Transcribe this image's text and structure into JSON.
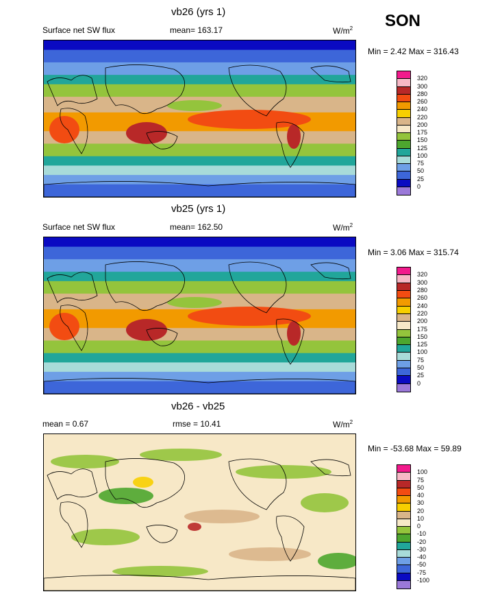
{
  "season": "SON",
  "panels": [
    {
      "title": "vb26 (yrs 1)",
      "left_label": "Surface net SW flux",
      "mean_label": "mean= 163.17",
      "units": "W/m",
      "units_sup": "2",
      "minmax": "Min =   2.42 Max = 316.43",
      "field": "absolute",
      "levels": [
        "320",
        "300",
        "280",
        "260",
        "240",
        "220",
        "200",
        "175",
        "150",
        "125",
        "100",
        "75",
        "50",
        "25",
        "0"
      ],
      "colors": [
        "#f21a8c",
        "#f7b8c6",
        "#b82828",
        "#f24c12",
        "#f29a00",
        "#f7cf00",
        "#d9b589",
        "#f7e8c7",
        "#94c43c",
        "#4da62e",
        "#21a69a",
        "#a8dbd9",
        "#6e9fe6",
        "#3d66d9",
        "#0a0ac2",
        "#9b79d9"
      ]
    },
    {
      "title": "vb25 (yrs 1)",
      "left_label": "Surface net SW flux",
      "mean_label": "mean= 162.50",
      "units": "W/m",
      "units_sup": "2",
      "minmax": "Min =   3.06 Max = 315.74",
      "field": "absolute",
      "levels": [
        "320",
        "300",
        "280",
        "260",
        "240",
        "220",
        "200",
        "175",
        "150",
        "125",
        "100",
        "75",
        "50",
        "25",
        "0"
      ],
      "colors": [
        "#f21a8c",
        "#f7b8c6",
        "#b82828",
        "#f24c12",
        "#f29a00",
        "#f7cf00",
        "#d9b589",
        "#f7e8c7",
        "#94c43c",
        "#4da62e",
        "#21a69a",
        "#a8dbd9",
        "#6e9fe6",
        "#3d66d9",
        "#0a0ac2",
        "#9b79d9"
      ]
    },
    {
      "title": "vb26 - vb25",
      "left_label": "mean =   0.67",
      "mean_label": "rmse =  10.41",
      "units": "W/m",
      "units_sup": "2",
      "minmax": "Min = -53.68 Max =  59.89",
      "field": "difference",
      "levels": [
        "100",
        "75",
        "50",
        "40",
        "30",
        "20",
        "10",
        "0",
        "-10",
        "-20",
        "-30",
        "-40",
        "-50",
        "-75",
        "-100"
      ],
      "colors": [
        "#f21a8c",
        "#f7b8c6",
        "#b82828",
        "#f24c12",
        "#f29a00",
        "#f7cf00",
        "#d9b589",
        "#f7e8c7",
        "#94c43c",
        "#4da62e",
        "#21a69a",
        "#a8dbd9",
        "#6e9fe6",
        "#3d66d9",
        "#0a0ac2",
        "#9b79d9"
      ]
    }
  ]
}
